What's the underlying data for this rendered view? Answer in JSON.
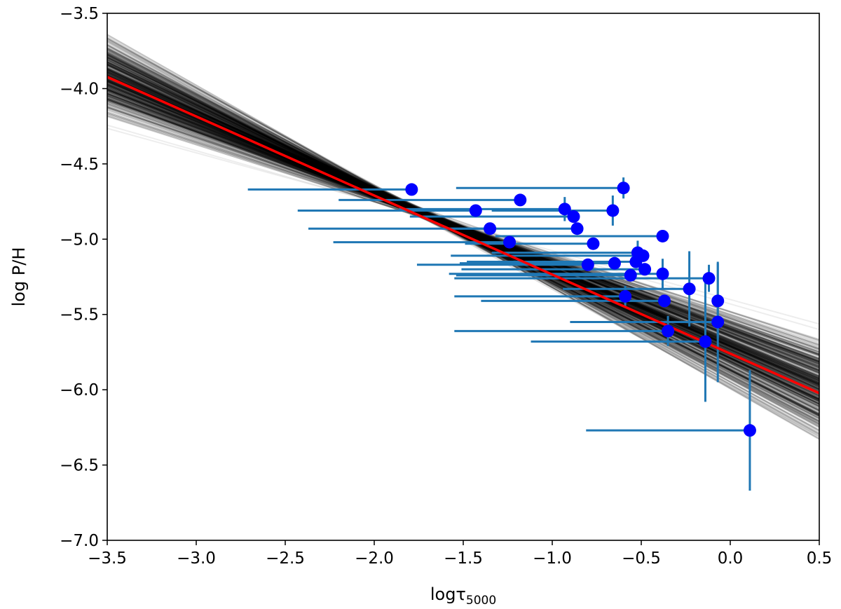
{
  "chart_data": {
    "type": "scatter",
    "title": "",
    "xlabel": "logτ",
    "xlabel_subscript": "5000",
    "ylabel": "log P/H",
    "xlim": [
      -3.5,
      0.5
    ],
    "ylim": [
      -7.0,
      -3.5
    ],
    "xticks": [
      -3.5,
      -3.0,
      -2.5,
      -2.0,
      -1.5,
      -1.0,
      -0.5,
      0.0,
      0.5
    ],
    "xtick_labels": [
      "−3.5",
      "−3.0",
      "−2.5",
      "−2.0",
      "−1.5",
      "−1.0",
      "−0.5",
      "0.0",
      "0.5"
    ],
    "yticks": [
      -7.0,
      -6.5,
      -6.0,
      -5.5,
      -5.0,
      -4.5,
      -4.0,
      -3.5
    ],
    "ytick_labels": [
      "−7.0",
      "−6.5",
      "−6.0",
      "−5.5",
      "−5.0",
      "−4.5",
      "−4.0",
      "−3.5"
    ],
    "grid": false,
    "colors": {
      "points": "#0000ff",
      "errorbars": "#1f77b4",
      "fit": "#ff0000",
      "samples": "#000000"
    },
    "best_fit": {
      "slope": -0.525,
      "intercept": -5.76
    },
    "posterior_band": {
      "pivot_x": -1.75,
      "slope_range": [
        -0.74,
        -0.3
      ],
      "pivot_range": [
        -4.86,
        -4.78
      ]
    },
    "points": [
      {
        "x": -1.79,
        "y": -4.67,
        "xerr": [
          0.92,
          0.0
        ],
        "yerr": 0.04
      },
      {
        "x": -1.43,
        "y": -4.81,
        "xerr": [
          1.0,
          0.0
        ],
        "yerr": 0.0
      },
      {
        "x": -1.18,
        "y": -4.74,
        "xerr": [
          1.02,
          0.0
        ],
        "yerr": 0.0
      },
      {
        "x": -1.35,
        "y": -4.93,
        "xerr": [
          1.02,
          0.0
        ],
        "yerr": 0.0
      },
      {
        "x": -1.24,
        "y": -5.02,
        "xerr": [
          0.99,
          0.0
        ],
        "yerr": 0.0
      },
      {
        "x": -0.93,
        "y": -4.8,
        "xerr": [
          0.93,
          0.0
        ],
        "yerr": 0.08
      },
      {
        "x": -0.88,
        "y": -4.85,
        "xerr": [
          0.92,
          0.0
        ],
        "yerr": 0.0
      },
      {
        "x": -0.86,
        "y": -4.93,
        "xerr": [
          0.76,
          0.0
        ],
        "yerr": 0.0
      },
      {
        "x": -0.6,
        "y": -4.66,
        "xerr": [
          0.94,
          0.0
        ],
        "yerr": 0.07
      },
      {
        "x": -0.66,
        "y": -4.81,
        "xerr": [
          0.68,
          0.0
        ],
        "yerr": 0.1
      },
      {
        "x": -0.38,
        "y": -4.98,
        "xerr": [
          0.94,
          0.0
        ],
        "yerr": 0.0
      },
      {
        "x": -0.77,
        "y": -5.03,
        "xerr": [
          0.72,
          0.0
        ],
        "yerr": 0.0
      },
      {
        "x": -0.52,
        "y": -5.09,
        "xerr": [
          0.82,
          0.0
        ],
        "yerr": 0.08
      },
      {
        "x": -0.49,
        "y": -5.11,
        "xerr": [
          1.08,
          0.0
        ],
        "yerr": 0.0
      },
      {
        "x": -0.8,
        "y": -5.17,
        "xerr": [
          0.96,
          0.0
        ],
        "yerr": 0.0
      },
      {
        "x": -0.65,
        "y": -5.16,
        "xerr": [
          0.87,
          0.0
        ],
        "yerr": 0.0
      },
      {
        "x": -0.53,
        "y": -5.15,
        "xerr": [
          0.95,
          0.0
        ],
        "yerr": 0.0
      },
      {
        "x": -0.48,
        "y": -5.2,
        "xerr": [
          1.03,
          0.0
        ],
        "yerr": 0.0
      },
      {
        "x": -0.56,
        "y": -5.24,
        "xerr": [
          0.98,
          0.0
        ],
        "yerr": 0.0
      },
      {
        "x": -0.38,
        "y": -5.23,
        "xerr": [
          1.2,
          0.0
        ],
        "yerr": 0.1
      },
      {
        "x": -0.12,
        "y": -5.26,
        "xerr": [
          1.43,
          0.0
        ],
        "yerr": 0.09
      },
      {
        "x": -0.23,
        "y": -5.33,
        "xerr": [
          0.71,
          0.0
        ],
        "yerr": 0.25
      },
      {
        "x": -0.59,
        "y": -5.38,
        "xerr": [
          0.96,
          0.0
        ],
        "yerr": 0.07
      },
      {
        "x": -0.37,
        "y": -5.41,
        "xerr": [
          1.03,
          0.0
        ],
        "yerr": 0.0
      },
      {
        "x": -0.07,
        "y": -5.41,
        "xerr": [
          0.0,
          0.0
        ],
        "yerr": 0.25
      },
      {
        "x": -0.07,
        "y": -5.55,
        "xerr": [
          0.83,
          0.0
        ],
        "yerr": 0.4
      },
      {
        "x": -0.35,
        "y": -5.61,
        "xerr": [
          1.2,
          0.0
        ],
        "yerr": 0.1
      },
      {
        "x": -0.14,
        "y": -5.68,
        "xerr": [
          0.98,
          0.0
        ],
        "yerr": 0.4
      },
      {
        "x": 0.11,
        "y": -6.27,
        "xerr": [
          0.92,
          0.0
        ],
        "yerr": 0.4
      }
    ]
  }
}
